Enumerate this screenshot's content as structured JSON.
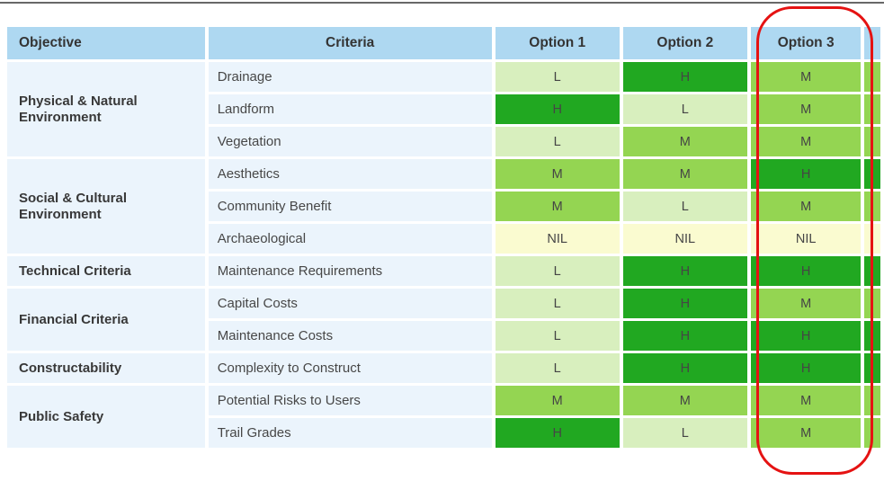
{
  "table": {
    "headers": [
      "Objective",
      "Criteria",
      "Option 1",
      "Option 2",
      "Option 3"
    ],
    "groups": [
      {
        "objective": "Physical & Natural Environment",
        "rows": [
          {
            "criteria": "Drainage",
            "options": [
              "L",
              "H",
              "M"
            ]
          },
          {
            "criteria": "Landform",
            "options": [
              "H",
              "L",
              "M"
            ]
          },
          {
            "criteria": "Vegetation",
            "options": [
              "L",
              "M",
              "M"
            ]
          }
        ]
      },
      {
        "objective": "Social & Cultural Environment",
        "rows": [
          {
            "criteria": "Aesthetics",
            "options": [
              "M",
              "M",
              "H"
            ]
          },
          {
            "criteria": "Community Benefit",
            "options": [
              "M",
              "L",
              "M"
            ]
          },
          {
            "criteria": "Archaeological",
            "options": [
              "NIL",
              "NIL",
              "NIL"
            ]
          }
        ]
      },
      {
        "objective": "Technical Criteria",
        "rows": [
          {
            "criteria": "Maintenance Requirements",
            "options": [
              "L",
              "H",
              "H"
            ]
          }
        ]
      },
      {
        "objective": "Financial Criteria",
        "rows": [
          {
            "criteria": "Capital Costs",
            "options": [
              "L",
              "H",
              "M"
            ]
          },
          {
            "criteria": "Maintenance Costs",
            "options": [
              "L",
              "H",
              "H"
            ]
          }
        ]
      },
      {
        "objective": "Constructability",
        "rows": [
          {
            "criteria": "Complexity to Construct",
            "options": [
              "L",
              "H",
              "H"
            ]
          }
        ]
      },
      {
        "objective": "Public Safety",
        "rows": [
          {
            "criteria": "Potential Risks to Users",
            "options": [
              "M",
              "M",
              "M"
            ]
          },
          {
            "criteria": "Trail Grades",
            "options": [
              "H",
              "L",
              "M"
            ]
          }
        ]
      }
    ],
    "rating_colors": {
      "L": "#d8efbe",
      "M": "#94d552",
      "H": "#21a821",
      "NIL": "#fafbd0"
    },
    "header_color": "#aed8f1",
    "label_cell_color": "#ebf4fc",
    "highlight": {
      "column": "Option 3",
      "color": "#e51212"
    }
  }
}
